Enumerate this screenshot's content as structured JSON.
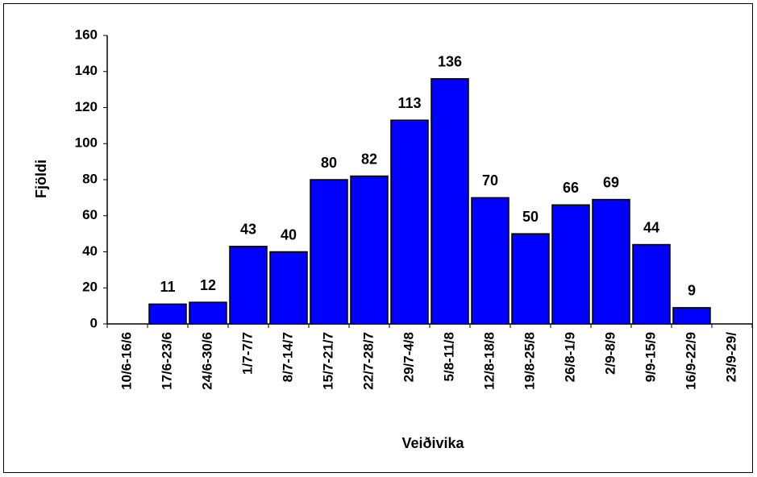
{
  "chart_data": {
    "type": "bar",
    "x_label": "Veiðivika",
    "y_label": "Fjöldi",
    "categories": [
      "10/6-16/6",
      "17/6-23/6",
      "24/6-30/6",
      "1/7-7/7",
      "8/7-14/7",
      "15/7-21/7",
      "22/7-28/7",
      "29/7-4/8",
      "5/8-11/8",
      "12/8-18/8",
      "19/8-25/8",
      "26/8-1/9",
      "2/9-8/9",
      "9/9-15/9",
      "16/9-22/9",
      "23/9-29/"
    ],
    "values": [
      null,
      11,
      12,
      43,
      40,
      80,
      82,
      113,
      136,
      70,
      50,
      66,
      69,
      44,
      9,
      null
    ],
    "color": "#0000ff",
    "ylim": [
      0,
      160
    ],
    "yticks": [
      0,
      20,
      40,
      60,
      80,
      100,
      120,
      140,
      160
    ],
    "grid": false
  }
}
